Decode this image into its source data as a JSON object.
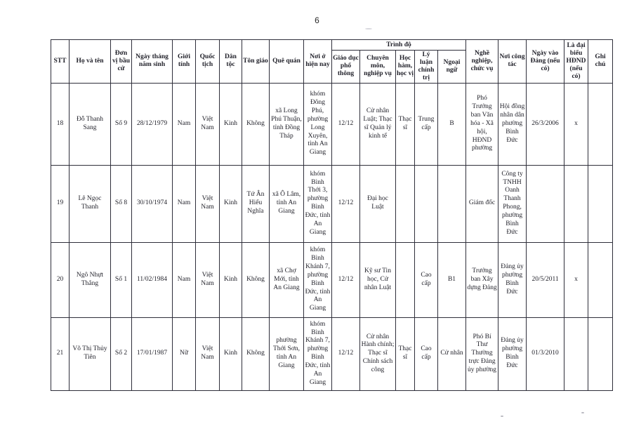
{
  "page": {
    "number": "6"
  },
  "style": {
    "ink_color": "#1f1f28",
    "paper_color": "#ffffff"
  },
  "table": {
    "header": {
      "left": [
        "STT",
        "Họ và tên",
        "Đơn vị bầu cử",
        "Ngày tháng năm sinh",
        "Giới tính",
        "Quốc tịch",
        "Dân tộc",
        "Tôn giáo",
        "Quê quán",
        "Nơi ở hiện nay"
      ],
      "group": "Trình độ",
      "group_cols": [
        "Giáo dục phổ thông",
        "Chuyên môn, nghiệp vụ",
        "Học hàm, học vị",
        "Lý luận chính trị",
        "Ngoại ngữ"
      ],
      "right": [
        "Nghề nghiệp, chức vụ",
        "Nơi công tác",
        "Ngày vào Đảng (nếu có)",
        "Là đại biểu HĐND (nếu có)",
        "Ghi chú"
      ]
    },
    "rows": [
      [
        "18",
        "Đỗ Thanh Sang",
        "Số 9",
        "28/12/1979",
        "Nam",
        "Việt Nam",
        "Kinh",
        "Không",
        "xã Long Phú Thuận, tỉnh Đồng Tháp",
        "khóm Đông Phú, phường Long Xuyên, tỉnh An Giang",
        "12/12",
        "Cử nhân Luật; Thạc sĩ Quản lý kinh tế",
        "Thạc sĩ",
        "Trung cấp",
        "B",
        "Phó Trưởng ban Văn hóa - Xã hội, HĐND phường",
        "Hội đồng nhân dân phường Bình Đức",
        "26/3/2006",
        "x",
        ""
      ],
      [
        "19",
        "Lê Ngọc Thanh",
        "Số 8",
        "30/10/1974",
        "Nam",
        "Việt Nam",
        "Kinh",
        "Tứ Ân Hiếu Nghĩa",
        "xã Ô Lâm, tỉnh An Giang",
        "khóm Bình Thới 3, phường Bình Đức, tỉnh An Giang",
        "12/12",
        "Đại học Luật",
        "",
        "",
        "",
        "Giám đốc",
        "Công ty TNHH Oanh Thanh Phong, phường Bình Đức",
        "",
        "",
        ""
      ],
      [
        "20",
        "Ngô Nhựt Thắng",
        "Số 1",
        "11/02/1984",
        "Nam",
        "Việt Nam",
        "Kinh",
        "Không",
        "xã Chợ Mới, tỉnh An Giang",
        "khóm Bình Khánh 7, phường Bình Đức, tỉnh An Giang",
        "12/12",
        "Kỹ sư Tin học, Cử nhân Luật",
        "",
        "Cao cấp",
        "B1",
        "Trưởng ban Xây dựng Đảng",
        "Đảng ủy phường Bình Đức",
        "20/5/2011",
        "x",
        ""
      ],
      [
        "21",
        "Võ Thị Thủy Tiên",
        "Số 2",
        "17/01/1987",
        "Nữ",
        "Việt Nam",
        "Kinh",
        "Không",
        "phường Thới Sơn, tỉnh An Giang",
        "khóm Bình Khánh 7, phường Bình Đức, tỉnh An Giang",
        "12/12",
        "Cử nhân Hành chính; Thạc sĩ Chính sách công",
        "Thạc sĩ",
        "Cao cấp",
        "Cử nhân",
        "Phó Bí Thư Thường trực Đảng ủy phường",
        "Đảng ủy phường Bình Đức",
        "01/3/2010",
        "",
        ""
      ]
    ]
  }
}
